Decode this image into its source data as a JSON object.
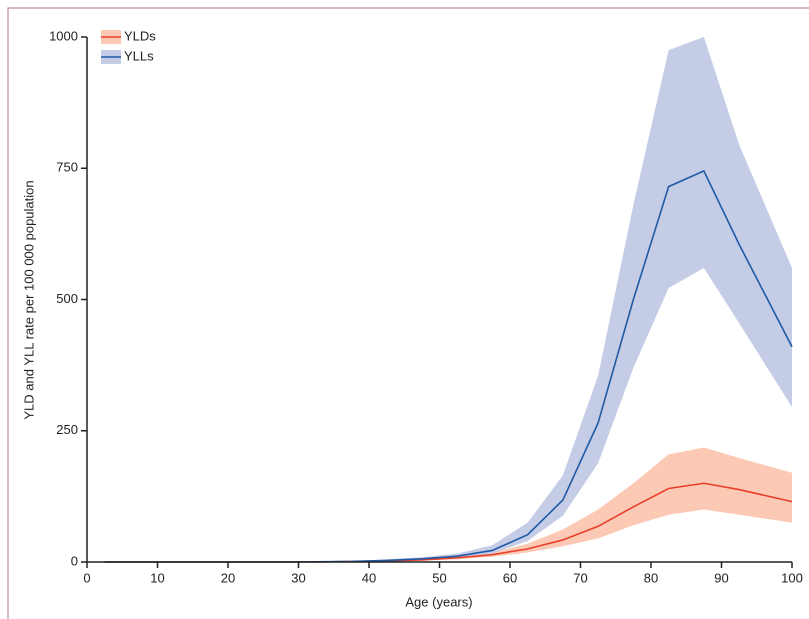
{
  "chart_data": {
    "type": "line",
    "xlabel": "Age (years)",
    "ylabel": "YLD and YLL rate per 100 000 population",
    "x": [
      2.5,
      7.5,
      12.5,
      17.5,
      22.5,
      27.5,
      32.5,
      37.5,
      42.5,
      47.5,
      52.5,
      57.5,
      62.5,
      67.5,
      72.5,
      77.5,
      82.5,
      87.5,
      92.5,
      100
    ],
    "series": [
      {
        "name": "YLDs",
        "color": "#e8402a",
        "band_color": "#fcc9b5",
        "values": [
          0,
          0,
          0,
          0,
          0,
          0,
          0,
          1,
          2,
          4,
          8,
          14,
          25,
          42,
          68,
          105,
          140,
          150,
          138,
          115
        ],
        "lower": [
          0,
          0,
          0,
          0,
          0,
          0,
          0,
          0.5,
          1,
          3,
          5,
          10,
          18,
          30,
          45,
          70,
          90,
          100,
          90,
          75
        ],
        "upper": [
          0,
          0,
          0,
          0,
          0,
          0,
          0,
          1.5,
          3,
          6,
          11,
          18,
          35,
          62,
          100,
          150,
          205,
          218,
          198,
          170
        ]
      },
      {
        "name": "YLLs",
        "color": "#1f5aa6",
        "band_color": "#c5cce6",
        "values": [
          0,
          0,
          0,
          0,
          0,
          0,
          0.5,
          1,
          3,
          6,
          11,
          22,
          52,
          118,
          265,
          500,
          715,
          745,
          605,
          410
        ],
        "lower": [
          0,
          0,
          0,
          0,
          0,
          0,
          0,
          0.5,
          2,
          4,
          8,
          16,
          40,
          88,
          188,
          370,
          522,
          560,
          455,
          295
        ],
        "upper": [
          0,
          0,
          0,
          0,
          0,
          0,
          1,
          2,
          5,
          9,
          16,
          32,
          75,
          165,
          355,
          680,
          975,
          1000,
          795,
          560
        ]
      }
    ],
    "xlim": [
      0,
      100
    ],
    "xticks": [
      0,
      10,
      20,
      30,
      40,
      50,
      60,
      70,
      80,
      90,
      100
    ],
    "ylim": [
      0,
      1000
    ],
    "yticks": [
      0,
      250,
      500,
      750,
      1000
    ],
    "legend": "upper left"
  }
}
